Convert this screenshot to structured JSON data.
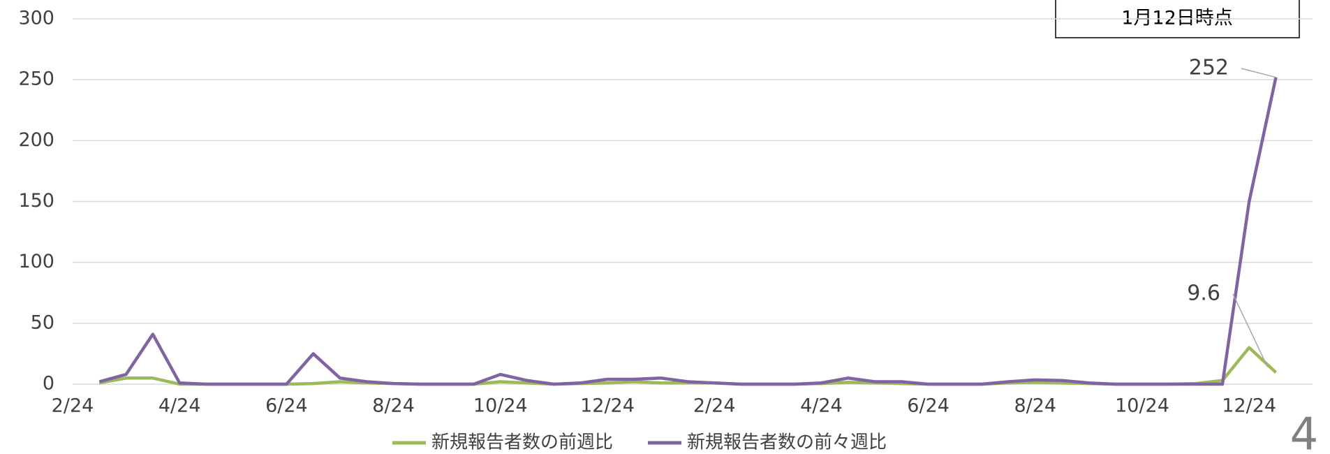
{
  "chart_data": {
    "type": "line",
    "annotation": "1月12日時点",
    "page_number": "4",
    "categories": [
      "2/24",
      null,
      null,
      null,
      "4/24",
      null,
      null,
      null,
      "6/24",
      null,
      null,
      null,
      "8/24",
      null,
      null,
      null,
      "10/24",
      null,
      null,
      null,
      "12/24",
      null,
      null,
      null,
      "2/24",
      null,
      null,
      null,
      "4/24",
      null,
      null,
      null,
      "6/24",
      null,
      null,
      null,
      "8/24",
      null,
      null,
      null,
      "10/24",
      null,
      null,
      null,
      "12/24",
      null
    ],
    "series": [
      {
        "name": "新規報告者数の前週比",
        "color": "#9bbb59",
        "values": [
          null,
          1,
          5,
          5,
          0,
          0,
          0,
          0,
          0,
          0.5,
          2,
          1,
          0.5,
          0,
          0,
          0,
          2,
          1,
          0,
          0.5,
          1,
          2,
          1,
          1,
          1,
          0,
          0,
          0,
          0.5,
          1.5,
          1,
          0.5,
          0,
          0,
          0,
          1,
          1.5,
          1,
          0.5,
          0,
          0,
          0,
          0.5,
          3,
          30,
          9.6
        ]
      },
      {
        "name": "新規報告者数の前々週比",
        "color": "#8064a2",
        "values": [
          null,
          2,
          8,
          41,
          1,
          0,
          0,
          0,
          0,
          25,
          5,
          2,
          0.5,
          0,
          0,
          0,
          8,
          3,
          0,
          1,
          4,
          4,
          5,
          2,
          1,
          0,
          0,
          0,
          1,
          5,
          2,
          2,
          0,
          0,
          0,
          2,
          3.5,
          3,
          1,
          0,
          0,
          0,
          0,
          0,
          150,
          252
        ]
      }
    ],
    "ylim": [
      0,
      300
    ],
    "yticks": [
      0,
      50,
      100,
      150,
      200,
      250,
      300
    ],
    "grid": true,
    "legend": "bottom"
  }
}
